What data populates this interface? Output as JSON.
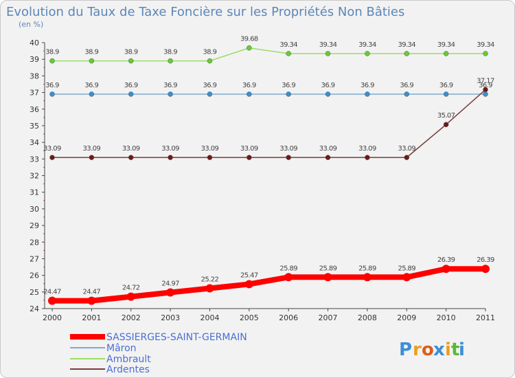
{
  "chart_data": {
    "type": "line",
    "title": "Evolution du Taux de Taxe Foncière sur les Propriétés Non Bâties",
    "subtitle": "(en %)",
    "xlabel": "",
    "ylabel": "",
    "x": [
      "2000",
      "2001",
      "2002",
      "2003",
      "2004",
      "2005",
      "2006",
      "2007",
      "2008",
      "2009",
      "2010",
      "2011"
    ],
    "ylim": [
      24,
      40
    ],
    "yticks": [
      24,
      25,
      26,
      27,
      28,
      29,
      30,
      31,
      32,
      33,
      34,
      35,
      36,
      37,
      38,
      39,
      40
    ],
    "grid": false,
    "legend_position": "bottom-left",
    "series": [
      {
        "name": "SASSIERGES-SAINT-GERMAIN",
        "color": "#ff0000",
        "values": [
          24.47,
          24.47,
          24.72,
          24.97,
          25.22,
          25.47,
          25.89,
          25.89,
          25.89,
          25.89,
          26.39,
          26.39
        ],
        "labels": [
          "24.47",
          "24.47",
          "24.72",
          "24.97",
          "25.22",
          "25.47",
          "25.89",
          "25.89",
          "25.89",
          "25.89",
          "26.39",
          "26.39"
        ]
      },
      {
        "name": "Mâron",
        "color": "#7fa9cf",
        "marker_color": "#3a8fd0",
        "values": [
          36.9,
          36.9,
          36.9,
          36.9,
          36.9,
          36.9,
          36.9,
          36.9,
          36.9,
          36.9,
          36.9,
          36.9
        ],
        "labels": [
          "36.9",
          "36.9",
          "36.9",
          "36.9",
          "36.9",
          "36.9",
          "36.9",
          "36.9",
          "36.9",
          "36.9",
          "36.9",
          "36.9"
        ]
      },
      {
        "name": "Ambrault",
        "color": "#99dd66",
        "marker_color": "#66cc33",
        "values": [
          38.9,
          38.9,
          38.9,
          38.9,
          38.9,
          39.68,
          39.34,
          39.34,
          39.34,
          39.34,
          39.34,
          39.34
        ],
        "labels": [
          "38.9",
          "38.9",
          "38.9",
          "38.9",
          "38.9",
          "39.68",
          "39.34",
          "39.34",
          "39.34",
          "39.34",
          "39.34",
          "39.34"
        ]
      },
      {
        "name": "Ardentes",
        "color": "#7a3b3b",
        "marker_color": "#6b1a1a",
        "values": [
          33.09,
          33.09,
          33.09,
          33.09,
          33.09,
          33.09,
          33.09,
          33.09,
          33.09,
          33.09,
          35.07,
          37.17
        ],
        "labels": [
          "33.09",
          "33.09",
          "33.09",
          "33.09",
          "33.09",
          "33.09",
          "33.09",
          "33.09",
          "33.09",
          "33.09",
          "35.07",
          "37.17"
        ]
      }
    ]
  },
  "brand": {
    "name": "Proxiti",
    "letters": [
      "P",
      "r",
      "o",
      "x",
      "i",
      "t",
      "i"
    ],
    "letter_colors": [
      "#3b8fd6",
      "#e8a020",
      "#e05a1a",
      "#3b8fd6",
      "#e8a020",
      "#5cb832",
      "#3b8fd6"
    ]
  }
}
